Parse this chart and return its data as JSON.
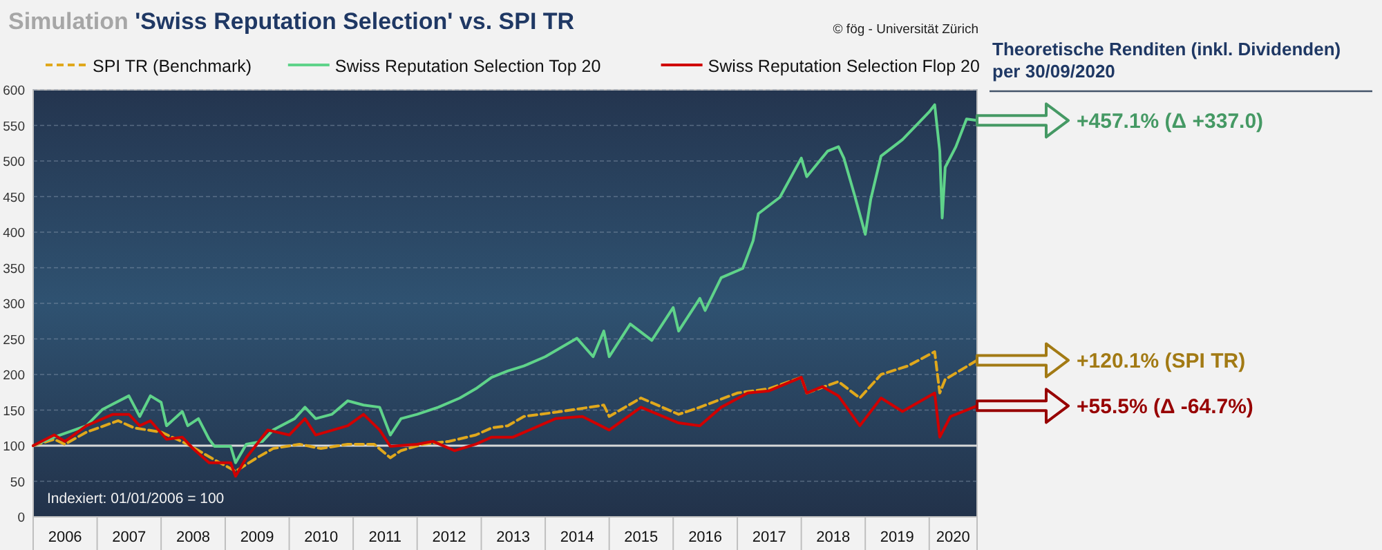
{
  "chart_data": {
    "type": "line",
    "title": "Simulation 'Swiss Reputation Selection' vs. SPI TR",
    "xlim": [
      "2006-01-01",
      "2020-09-30"
    ],
    "xticks": [
      {
        "value": "2006-07-02",
        "label": "2006"
      },
      {
        "value": "2007-07-02",
        "label": "2007"
      },
      {
        "value": "2008-07-02",
        "label": "2008"
      },
      {
        "value": "2009-07-02",
        "label": "2009"
      },
      {
        "value": "2010-07-02",
        "label": "2010"
      },
      {
        "value": "2011-07-02",
        "label": "2011"
      },
      {
        "value": "2012-07-02",
        "label": "2012"
      },
      {
        "value": "2013-07-02",
        "label": "2013"
      },
      {
        "value": "2014-07-02",
        "label": "2014"
      },
      {
        "value": "2015-07-02",
        "label": "2015"
      },
      {
        "value": "2016-07-02",
        "label": "2016"
      },
      {
        "value": "2017-07-02",
        "label": "2017"
      },
      {
        "value": "2018-07-02",
        "label": "2018"
      },
      {
        "value": "2019-07-02",
        "label": "2019"
      },
      {
        "value": "2020-05-16",
        "label": "2020"
      }
    ],
    "ylim": [
      0,
      600
    ],
    "yticks": [
      0,
      50,
      100,
      150,
      200,
      250,
      300,
      350,
      400,
      450,
      500,
      550,
      600
    ],
    "grid": "y",
    "legend": "top",
    "series": [
      {
        "name": "SPI TR (Benchmark)",
        "color": "#e0a81c",
        "line_style": "dashed",
        "x": [
          "2006-01",
          "2006-05",
          "2006-07",
          "2006-11",
          "2007-05",
          "2007-08",
          "2008-01",
          "2008-06",
          "2008-11",
          "2009-03",
          "2009-07",
          "2009-10",
          "2010-03",
          "2010-07",
          "2010-12",
          "2011-05",
          "2011-08",
          "2011-10",
          "2012-02",
          "2012-07",
          "2012-12",
          "2013-03",
          "2013-06",
          "2013-09",
          "2014-04",
          "2014-12",
          "2015-01",
          "2015-07",
          "2016-02",
          "2016-06",
          "2017-01",
          "2017-07",
          "2018-01",
          "2018-02",
          "2018-08",
          "2018-12",
          "2019-04",
          "2019-09",
          "2020-02",
          "2020-03",
          "2020-04",
          "2020-09-30"
        ],
        "values": [
          100,
          109,
          102,
          119,
          135,
          125,
          119,
          102,
          80,
          64,
          83,
          96,
          102,
          96,
          102,
          102,
          83,
          93,
          102,
          106,
          115,
          125,
          128,
          141,
          148,
          157,
          141,
          167,
          144,
          154,
          174,
          180,
          196,
          174,
          190,
          167,
          200,
          212,
          232,
          174,
          193,
          220
        ]
      },
      {
        "name": "Swiss Reputation Selection Top 20",
        "color": "#5fd38a",
        "line_style": "solid",
        "x": [
          "2006-01",
          "2006-05",
          "2006-11",
          "2007-02",
          "2007-07",
          "2007-09",
          "2007-11",
          "2008-01",
          "2008-02",
          "2008-05",
          "2008-06",
          "2008-08",
          "2008-10",
          "2008-11",
          "2009-02",
          "2009-03",
          "2009-05",
          "2009-08",
          "2009-10",
          "2010-02",
          "2010-04",
          "2010-06",
          "2010-09",
          "2010-12",
          "2011-03",
          "2011-06",
          "2011-08",
          "2011-10",
          "2012-01",
          "2012-05",
          "2012-09",
          "2012-12",
          "2013-03",
          "2013-06",
          "2013-09",
          "2014-01",
          "2014-07",
          "2014-10",
          "2014-12",
          "2015-01",
          "2015-05",
          "2015-09",
          "2016-01",
          "2016-02",
          "2016-06",
          "2016-07",
          "2016-10",
          "2017-02",
          "2017-04",
          "2017-05",
          "2017-09",
          "2018-01",
          "2018-02",
          "2018-06",
          "2018-08",
          "2018-09",
          "2018-11",
          "2019-01",
          "2019-02",
          "2019-04",
          "2019-08",
          "2020-01",
          "2020-02",
          "2020-03-01",
          "2020-03-15",
          "2020-04",
          "2020-06",
          "2020-08",
          "2020-09-30"
        ],
        "values": [
          100,
          112,
          128,
          151,
          170,
          141,
          170,
          161,
          128,
          148,
          128,
          138,
          109,
          99,
          99,
          76,
          102,
          106,
          122,
          138,
          154,
          138,
          144,
          163,
          157,
          154,
          115,
          138,
          144,
          154,
          167,
          180,
          196,
          205,
          212,
          225,
          251,
          225,
          261,
          225,
          271,
          248,
          294,
          261,
          307,
          290,
          336,
          349,
          388,
          426,
          449,
          504,
          478,
          514,
          520,
          504,
          452,
          397,
          446,
          507,
          530,
          569,
          579,
          514,
          420,
          491,
          520,
          559,
          557
        ]
      },
      {
        "name": "Swiss Reputation Selection Flop 20",
        "color": "#d00000",
        "line_style": "solid",
        "x": [
          "2006-01",
          "2006-05",
          "2006-07",
          "2006-11",
          "2007-04",
          "2007-07",
          "2007-09",
          "2007-11",
          "2008-02",
          "2008-05",
          "2008-07",
          "2008-10",
          "2009-02",
          "2009-03",
          "2009-05",
          "2009-09",
          "2010-01",
          "2010-04",
          "2010-06",
          "2010-12",
          "2011-03",
          "2011-06",
          "2011-08",
          "2012-01",
          "2012-04",
          "2012-08",
          "2012-12",
          "2013-03",
          "2013-07",
          "2014-03",
          "2014-08",
          "2015-01",
          "2015-07",
          "2016-02",
          "2016-06",
          "2016-10",
          "2017-03",
          "2017-07",
          "2018-01",
          "2018-02",
          "2018-05",
          "2018-08",
          "2018-12",
          "2019-04",
          "2019-08",
          "2020-02",
          "2020-03",
          "2020-05",
          "2020-09-30"
        ],
        "values": [
          100,
          115,
          106,
          128,
          144,
          144,
          128,
          135,
          109,
          112,
          96,
          76,
          76,
          57,
          83,
          122,
          115,
          138,
          115,
          128,
          144,
          122,
          99,
          102,
          106,
          93,
          102,
          112,
          112,
          138,
          141,
          122,
          154,
          132,
          128,
          154,
          174,
          177,
          196,
          174,
          183,
          170,
          128,
          167,
          148,
          174,
          112,
          141,
          156
        ]
      }
    ],
    "ref_lines": [
      {
        "axis": "y",
        "value": 100,
        "color": "#d9d9d9"
      }
    ],
    "annotations": [
      "Indexiert: 01/01/2006 = 100",
      "© fög - Universität Zürich",
      "Theoretische Renditen (inkl. Dividenden) per 30/09/2020",
      "+457.1%  (Δ +337.0)",
      "+120.1% (SPI TR)",
      "+55.5%  (Δ -64.7%)"
    ]
  }
}
